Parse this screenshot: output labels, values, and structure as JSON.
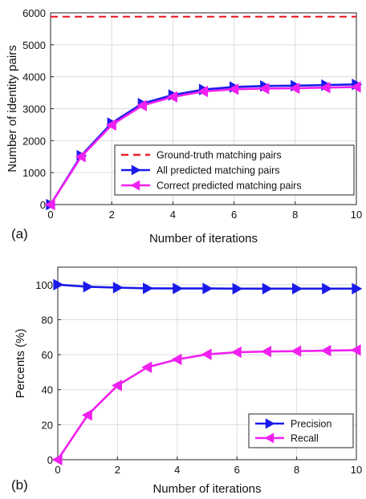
{
  "chart_data": [
    {
      "panel_label": "(a)",
      "type": "line",
      "xlabel": "Number of iterations",
      "ylabel": "Number of identity pairs",
      "xlim": [
        0,
        10
      ],
      "ylim": [
        0,
        6000
      ],
      "xticks": [
        0,
        2,
        4,
        6,
        8,
        10
      ],
      "yticks": [
        0,
        1000,
        2000,
        3000,
        4000,
        5000,
        6000
      ],
      "grid": true,
      "legend_position": "bottom-right",
      "x": [
        0,
        1,
        2,
        3,
        4,
        5,
        6,
        7,
        8,
        9,
        10
      ],
      "series": [
        {
          "name": "Ground-truth matching pairs",
          "style": "dashed",
          "marker": "none",
          "color": "#e8202a",
          "values": [
            5880,
            5880,
            5880,
            5880,
            5880,
            5880,
            5880,
            5880,
            5880,
            5880,
            5880
          ]
        },
        {
          "name": "All predicted matching pairs",
          "style": "solid",
          "marker": "triangle-right",
          "color": "#1a1aeb",
          "values": [
            0,
            1530,
            2550,
            3160,
            3430,
            3600,
            3680,
            3710,
            3720,
            3740,
            3760
          ]
        },
        {
          "name": "Correct predicted matching pairs",
          "style": "solid",
          "marker": "triangle-left",
          "color": "#f020f0",
          "values": [
            0,
            1500,
            2490,
            3100,
            3370,
            3540,
            3610,
            3630,
            3640,
            3660,
            3680
          ]
        }
      ]
    },
    {
      "panel_label": "(b)",
      "type": "line",
      "xlabel": "Number of iterations",
      "ylabel": "Percents (%)",
      "xlim": [
        0,
        10
      ],
      "ylim": [
        0,
        110
      ],
      "xticks": [
        0,
        2,
        4,
        6,
        8,
        10
      ],
      "yticks": [
        0,
        20,
        40,
        60,
        80,
        100
      ],
      "grid": true,
      "legend_position": "bottom-right",
      "x": [
        0,
        1,
        2,
        3,
        4,
        5,
        6,
        7,
        8,
        9,
        10
      ],
      "series": [
        {
          "name": "Precision",
          "style": "solid",
          "marker": "triangle-right",
          "color": "#1a1aeb",
          "values": [
            100,
            98.8,
            98.3,
            97.9,
            97.8,
            97.8,
            97.7,
            97.7,
            97.7,
            97.7,
            97.7
          ]
        },
        {
          "name": "Recall",
          "style": "solid",
          "marker": "triangle-left",
          "color": "#f020f0",
          "values": [
            0,
            25.5,
            42.4,
            52.8,
            57.3,
            60.2,
            61.4,
            61.8,
            62,
            62.3,
            62.6
          ]
        }
      ]
    }
  ]
}
